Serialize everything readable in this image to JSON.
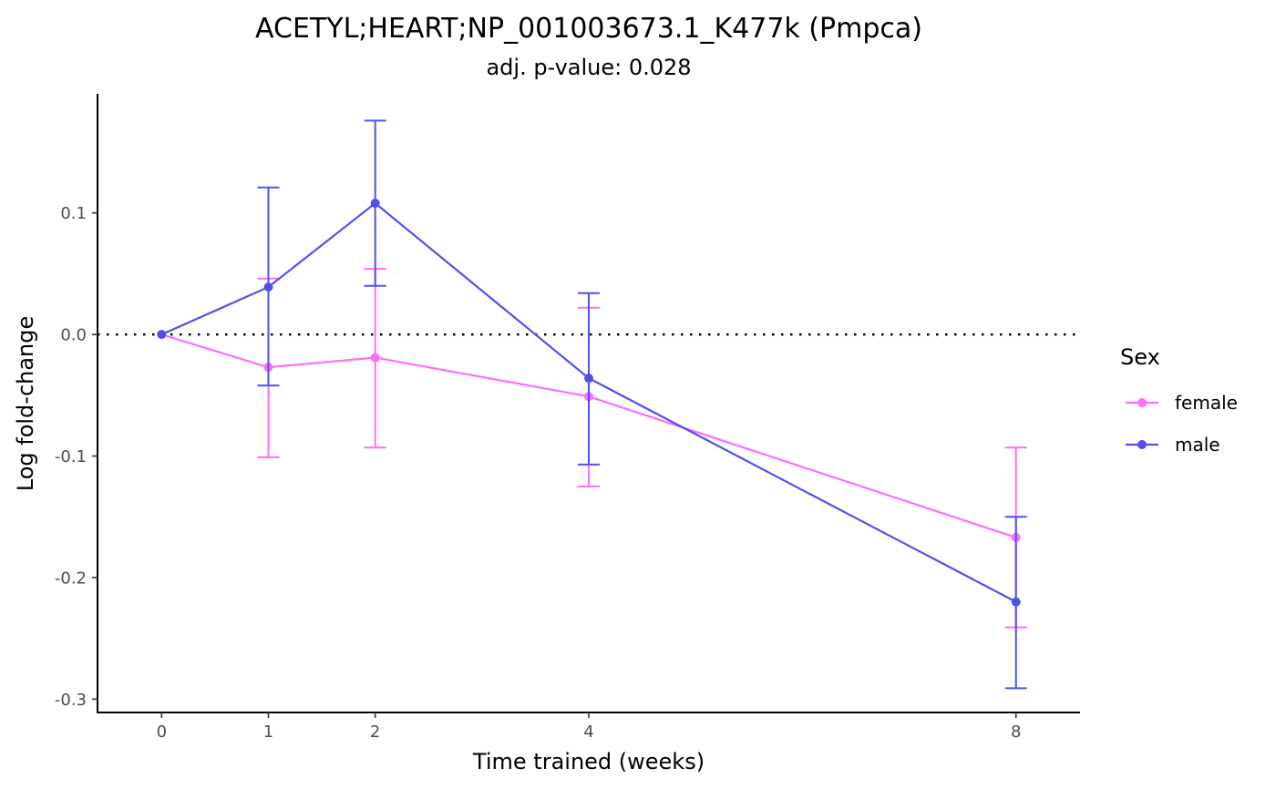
{
  "chart_data": {
    "type": "line",
    "title": "ACETYL;HEART;NP_001003673.1_K477k (Pmpca)",
    "subtitle": "adj. p-value: 0.028",
    "xlabel": "Time trained (weeks)",
    "ylabel": "Log fold-change",
    "x_ticks": [
      0,
      1,
      2,
      4,
      8
    ],
    "x_tick_labels": [
      "0",
      "1",
      "2",
      "4",
      "8"
    ],
    "y_ticks": [
      -0.3,
      -0.2,
      -0.1,
      0.0,
      0.1
    ],
    "y_tick_labels": [
      "-0.3",
      "-0.2",
      "-0.1",
      "0.0",
      "0.1"
    ],
    "xlim": [
      -0.6,
      8.6
    ],
    "ylim": [
      -0.311,
      0.198
    ],
    "reference_line": {
      "y": 0,
      "style": "dotted",
      "color": "#000000"
    },
    "legend": {
      "title": "Sex",
      "placement": "right"
    },
    "grid": false,
    "series": [
      {
        "name": "female",
        "color": "#FF6CFF",
        "x": [
          0,
          1,
          2,
          4,
          8
        ],
        "y": [
          0.0,
          -0.027,
          -0.019,
          -0.051,
          -0.167
        ],
        "error_low": [
          null,
          -0.101,
          -0.093,
          -0.125,
          -0.241
        ],
        "error_high": [
          null,
          0.046,
          0.054,
          0.022,
          -0.093
        ]
      },
      {
        "name": "male",
        "color": "#5050F0",
        "x": [
          0,
          1,
          2,
          4,
          8
        ],
        "y": [
          0.0,
          0.039,
          0.108,
          -0.036,
          -0.22
        ],
        "error_low": [
          null,
          -0.042,
          0.04,
          -0.107,
          -0.291
        ],
        "error_high": [
          null,
          0.121,
          0.176,
          0.034,
          -0.15
        ]
      }
    ]
  }
}
